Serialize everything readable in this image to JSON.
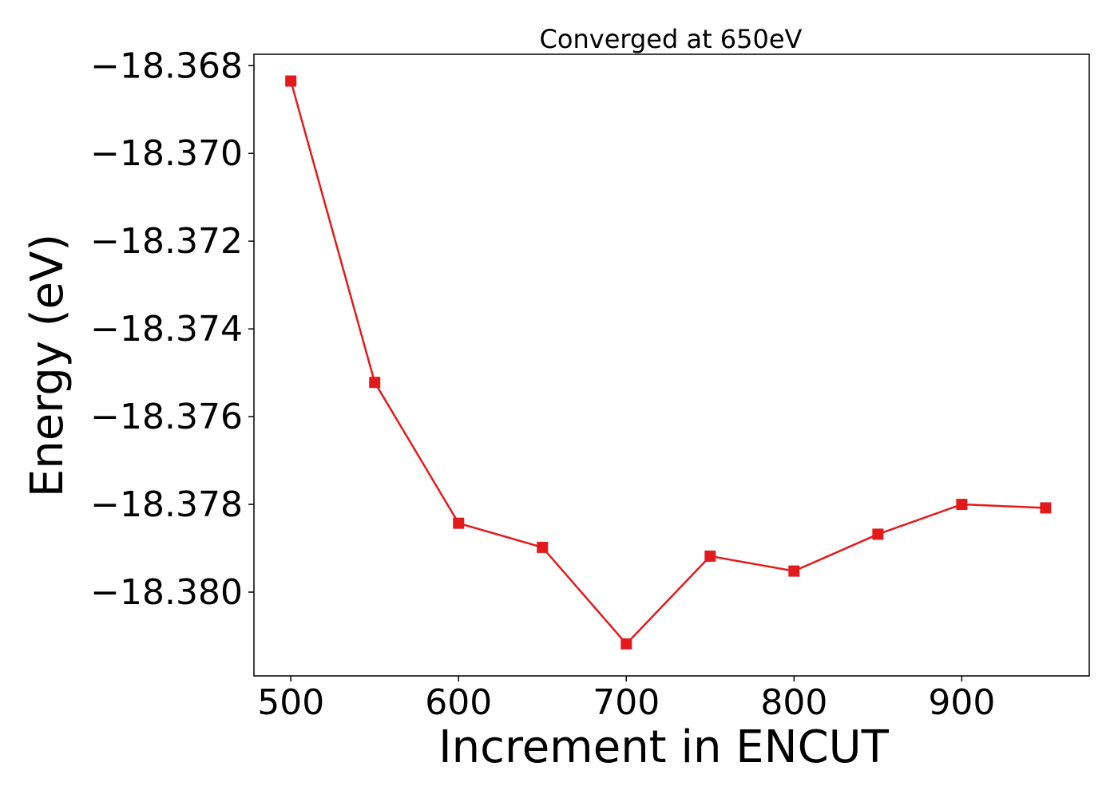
{
  "chart_data": {
    "type": "line",
    "title": "Converged at 650eV",
    "xlabel": "Increment in ENCUT",
    "ylabel": "Energy (eV)",
    "x": [
      500,
      550,
      600,
      650,
      700,
      750,
      800,
      850,
      900,
      950
    ],
    "series": [
      {
        "values": [
          -18.36835,
          -18.37522,
          -18.37843,
          -18.37898,
          -18.38118,
          -18.37918,
          -18.37952,
          -18.37868,
          -18.378,
          -18.37808
        ]
      }
    ],
    "xlim": [
      478,
      976
    ],
    "ylim": [
      -18.38191,
      -18.36774
    ],
    "xticks": [
      500,
      600,
      700,
      800,
      900
    ],
    "yticks": [
      -18.368,
      -18.37,
      -18.372,
      -18.374,
      -18.376,
      -18.378,
      -18.38
    ],
    "xtick_labels": [
      "500",
      "600",
      "700",
      "800",
      "900"
    ],
    "ytick_labels": [
      "−18.368",
      "−18.370",
      "−18.372",
      "−18.374",
      "−18.376",
      "−18.378",
      "−18.380"
    ],
    "grid": false,
    "line_color": "#e31a1c",
    "marker": "square"
  }
}
